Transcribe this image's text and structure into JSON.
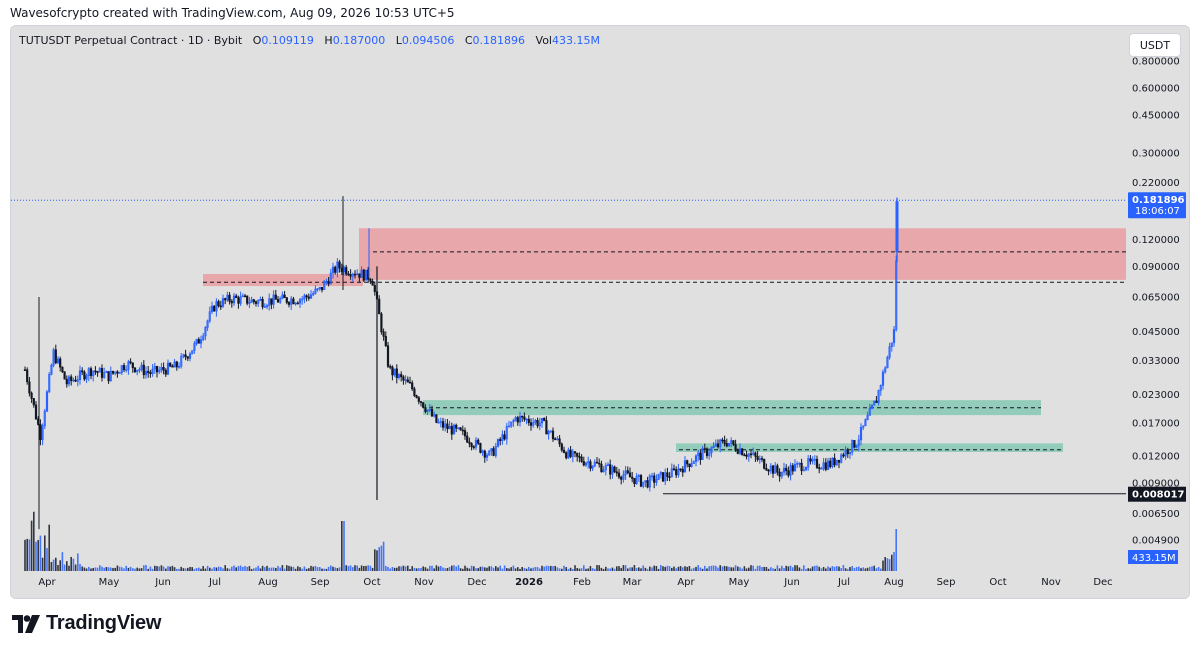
{
  "attribution": "Wavesofcrypto created with TradingView.com, Aug 09, 2026 10:53 UTC+5",
  "legend": {
    "symbol": "TUTUSDT Perpetual Contract · 1D · Bybit",
    "o_label": "O",
    "o": "0.109119",
    "h_label": "H",
    "h": "0.187000",
    "l_label": "L",
    "l": "0.094506",
    "c_label": "C",
    "c": "0.181896",
    "vol_label": "Vol",
    "vol": "433.15M"
  },
  "currency_button": "USDT",
  "brand": "TradingView",
  "colors": {
    "background": "#e0e0e0",
    "candle": "#2962ff",
    "candle_dark": "#131722",
    "resistance_zone": "#e8a3a7",
    "support_zone": "#8fcab8",
    "price_tag": "#2962ff"
  },
  "chart_data": {
    "type": "candlestick",
    "scale": "log",
    "y_ticks": [
      "0.800000",
      "0.600000",
      "0.450000",
      "0.300000",
      "0.220000",
      "0.120000",
      "0.090000",
      "0.065000",
      "0.045000",
      "0.033000",
      "0.023000",
      "0.017000",
      "0.012000",
      "0.009000",
      "0.006500",
      "0.004900"
    ],
    "x_ticks": [
      "Apr",
      "May",
      "Jun",
      "Jul",
      "Aug",
      "Sep",
      "Oct",
      "Nov",
      "Dec",
      "2026",
      "Feb",
      "Mar",
      "Apr",
      "May",
      "Jun",
      "Jul",
      "Aug",
      "Sep",
      "Oct",
      "Nov",
      "Dec"
    ],
    "last_price": "0.181896",
    "countdown": "18:06:07",
    "low_marker": "0.008017",
    "volume_label": "433.15M",
    "price_path": [
      [
        "Apr",
        0.03
      ],
      [
        "Apr",
        0.015
      ],
      [
        "Apr",
        0.036
      ],
      [
        "Apr",
        0.026
      ],
      [
        "May",
        0.03
      ],
      [
        "May",
        0.028
      ],
      [
        "May",
        0.032
      ],
      [
        "Jun",
        0.029
      ],
      [
        "Jun",
        0.031
      ],
      [
        "Jul",
        0.04
      ],
      [
        "Jul",
        0.06
      ],
      [
        "Jul",
        0.064
      ],
      [
        "Aug",
        0.062
      ],
      [
        "Aug",
        0.063
      ],
      [
        "Sep",
        0.064
      ],
      [
        "Sep",
        0.07
      ],
      [
        "Sep",
        0.09
      ],
      [
        "Oct",
        0.085
      ],
      [
        "Oct",
        0.08
      ],
      [
        "Oct",
        0.03
      ],
      [
        "Nov",
        0.025
      ],
      [
        "Nov",
        0.017
      ],
      [
        "Dec",
        0.015
      ],
      [
        "Dec",
        0.012
      ],
      [
        "2026",
        0.018
      ],
      [
        "2026",
        0.017
      ],
      [
        "Feb",
        0.012
      ],
      [
        "Feb",
        0.011
      ],
      [
        "Mar",
        0.01
      ],
      [
        "Mar",
        0.009
      ],
      [
        "Apr",
        0.01
      ],
      [
        "Apr",
        0.012
      ],
      [
        "May",
        0.014
      ],
      [
        "May",
        0.012
      ],
      [
        "Jun",
        0.01
      ],
      [
        "Jun",
        0.011
      ],
      [
        "Jul",
        0.011
      ],
      [
        "Jul",
        0.014
      ],
      [
        "Aug",
        0.022
      ],
      [
        "Aug",
        0.045
      ],
      [
        "Aug",
        0.182
      ]
    ],
    "zones": [
      {
        "kind": "resistance",
        "low": 0.078,
        "high": 0.135
      },
      {
        "kind": "support",
        "low": 0.0185,
        "high": 0.0217
      },
      {
        "kind": "support",
        "low": 0.0125,
        "high": 0.0137
      }
    ],
    "levels": [
      0.105,
      0.076,
      0.02,
      0.0128,
      0.008017
    ]
  }
}
